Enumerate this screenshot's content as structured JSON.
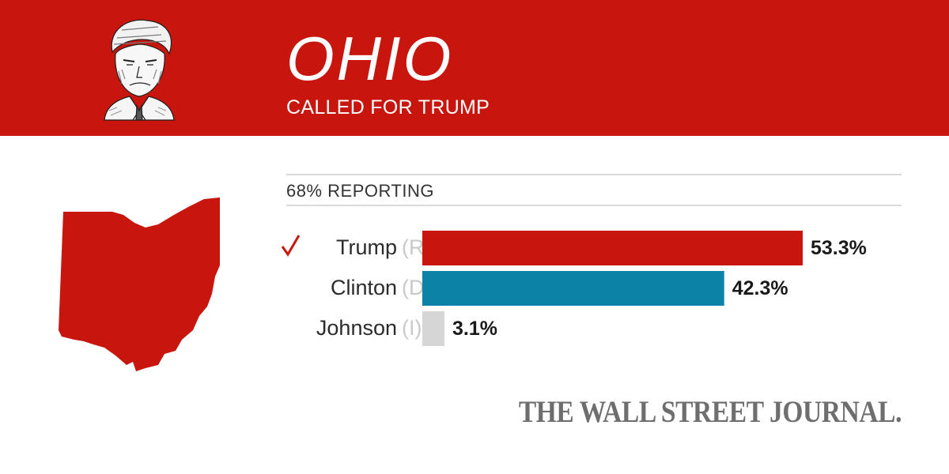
{
  "header": {
    "state": "OHIO",
    "status": "CALLED FOR TRUMP",
    "background_color": "#c8160e"
  },
  "portrait_icon": "candidate-portrait-sketch",
  "map_icon": "ohio-state-shape",
  "reporting_text": "68% REPORTING",
  "chart_data": {
    "type": "bar",
    "orientation": "horizontal",
    "title": "OHIO",
    "subtitle": "68% REPORTING",
    "unit": "%",
    "xlim": [
      0,
      53.3
    ],
    "categories": [
      "Trump",
      "Clinton",
      "Johnson"
    ],
    "parties": [
      "(R)",
      "(D)",
      "(I)"
    ],
    "values": [
      53.3,
      42.3,
      3.1
    ],
    "value_labels": [
      "53.3%",
      "42.3%",
      "3.1%"
    ],
    "winner": "Trump",
    "winner_marker": "checkmark-icon",
    "colors": [
      "#c8160e",
      "#0b82a6",
      "#d6d6d6"
    ],
    "grid": false
  },
  "footer": {
    "logo_text": "THE WALL STREET JOURNAL."
  }
}
